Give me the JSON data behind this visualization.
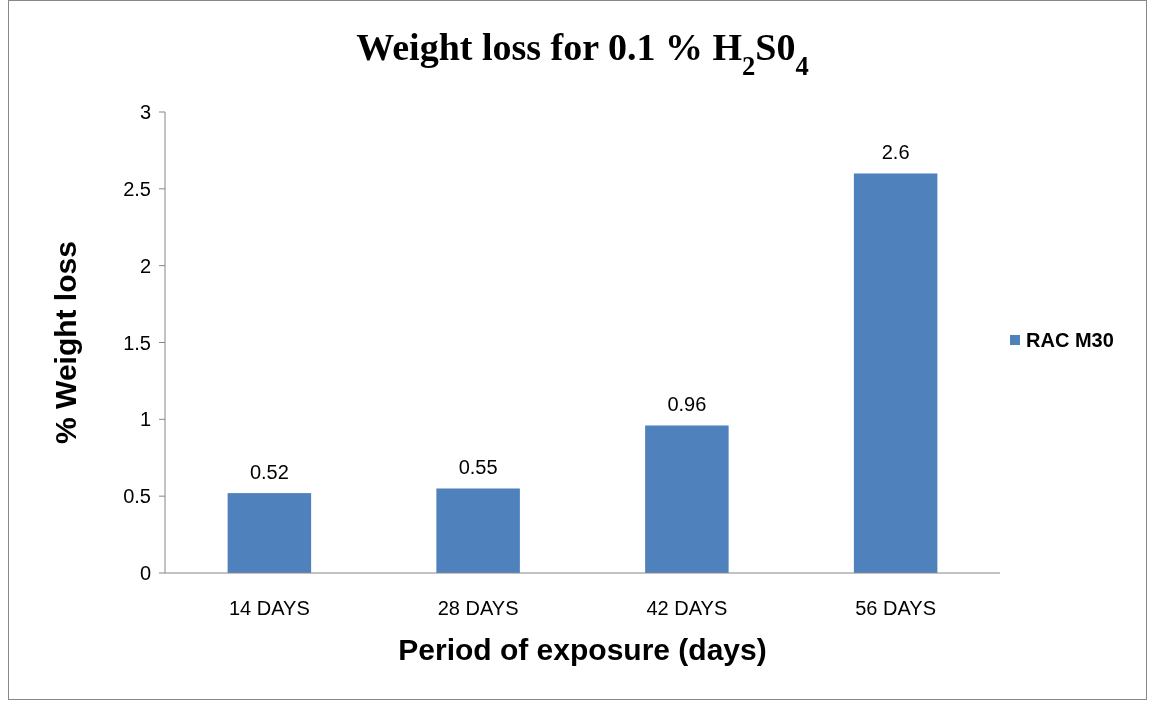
{
  "chart_data": {
    "type": "bar",
    "title": "Weight loss for 0.1 % H$_{2}$S0$_{4}$",
    "xlabel": "Period of exposure (days)",
    "ylabel": "% Weight loss",
    "categories": [
      "14 DAYS",
      "28 DAYS",
      "42 DAYS",
      "56 DAYS"
    ],
    "series": [
      {
        "name": "RAC M30",
        "color": "#4f81bd",
        "values": [
          0.52,
          0.55,
          0.96,
          2.6
        ]
      }
    ],
    "ylim": [
      0,
      3
    ],
    "yticks": [
      0,
      0.5,
      1,
      1.5,
      2,
      2.5,
      3
    ],
    "grid": false,
    "legend": "right",
    "data_labels": true
  }
}
